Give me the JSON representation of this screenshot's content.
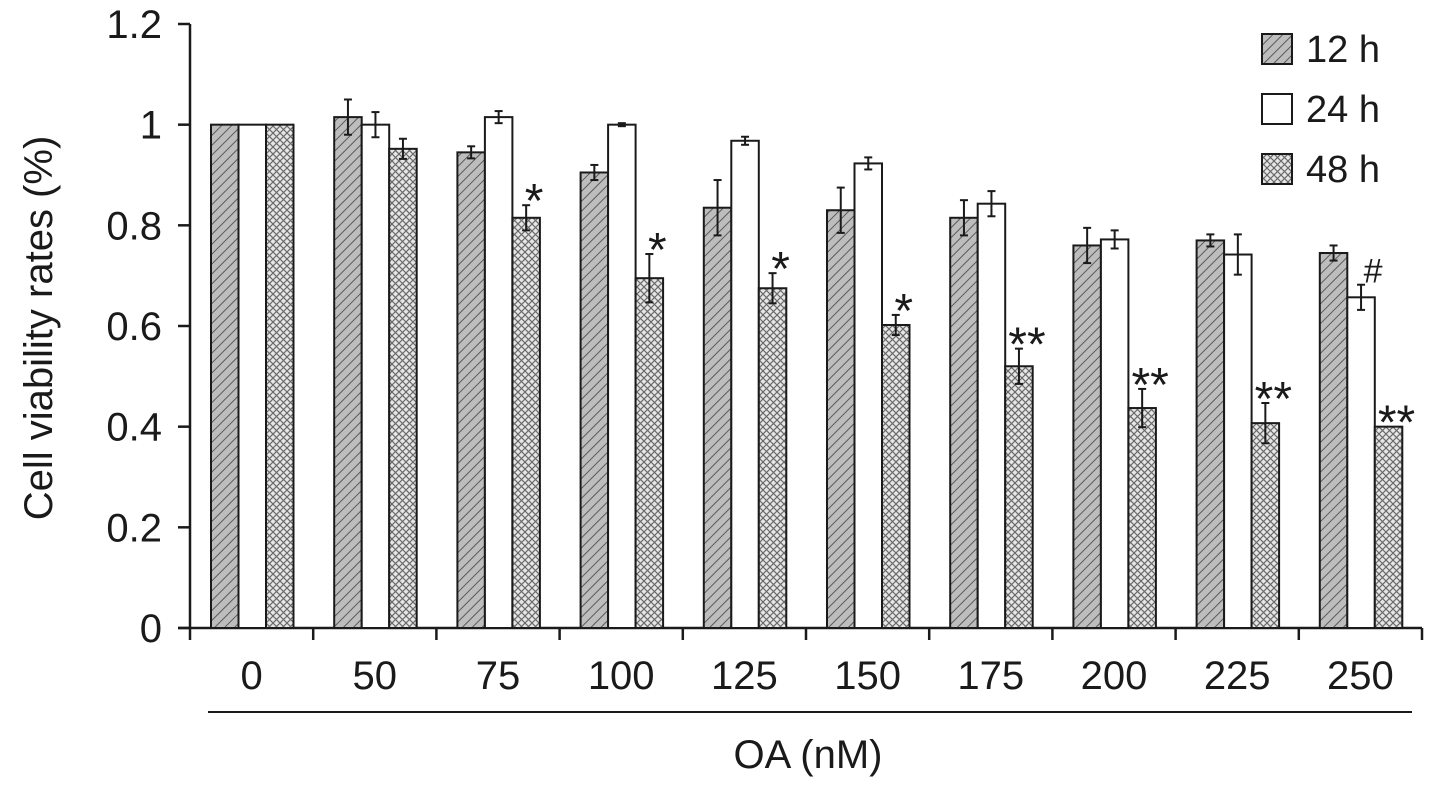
{
  "chart_data": {
    "type": "bar",
    "title": "",
    "xlabel": "OA (nM)",
    "ylabel": "Cell viability rates (%)",
    "ylim": [
      0,
      1.2
    ],
    "yticks": [
      "0",
      "0.2",
      "0.4",
      "0.6",
      "0.8",
      "1",
      "1.2"
    ],
    "categories": [
      "0",
      "50",
      "75",
      "100",
      "125",
      "150",
      "175",
      "200",
      "225",
      "250"
    ],
    "series": [
      {
        "name": "12 h",
        "pattern": "diagonal-hatch",
        "values": [
          1.0,
          1.015,
          0.945,
          0.905,
          0.835,
          0.83,
          0.815,
          0.76,
          0.77,
          0.745
        ],
        "errors": [
          0,
          0.035,
          0.012,
          0.015,
          0.055,
          0.045,
          0.035,
          0.035,
          0.012,
          0.015
        ]
      },
      {
        "name": "24 h",
        "pattern": "solid-white",
        "values": [
          1.0,
          1.0,
          1.015,
          1.0,
          0.968,
          0.923,
          0.843,
          0.772,
          0.742,
          0.657
        ],
        "errors": [
          0,
          0.025,
          0.012,
          0.003,
          0.008,
          0.012,
          0.025,
          0.018,
          0.04,
          0.025
        ]
      },
      {
        "name": "48 h",
        "pattern": "cross-hatch",
        "values": [
          1.0,
          0.952,
          0.815,
          0.695,
          0.675,
          0.602,
          0.52,
          0.437,
          0.407,
          0.4
        ],
        "errors": [
          0,
          0.02,
          0.025,
          0.048,
          0.03,
          0.02,
          0.035,
          0.038,
          0.04,
          0.0
        ]
      }
    ],
    "annotations": [
      {
        "category": "75",
        "series": "48 h",
        "text": "*"
      },
      {
        "category": "100",
        "series": "48 h",
        "text": "*"
      },
      {
        "category": "125",
        "series": "48 h",
        "text": "*"
      },
      {
        "category": "150",
        "series": "48 h",
        "text": "*"
      },
      {
        "category": "175",
        "series": "48 h",
        "text": "**"
      },
      {
        "category": "200",
        "series": "48 h",
        "text": "**"
      },
      {
        "category": "225",
        "series": "48 h",
        "text": "**"
      },
      {
        "category": "250",
        "series": "48 h",
        "text": "**"
      },
      {
        "category": "250",
        "series": "24 h",
        "text": "#"
      }
    ],
    "legend_position": "top-right",
    "grid": false,
    "colors": {
      "ink": "#1a1a1a",
      "hatch": "#555555",
      "bar_fill": "#ffffff",
      "diag_bg": "#bdbdbd",
      "cross_bg": "#e6e6e6"
    }
  }
}
